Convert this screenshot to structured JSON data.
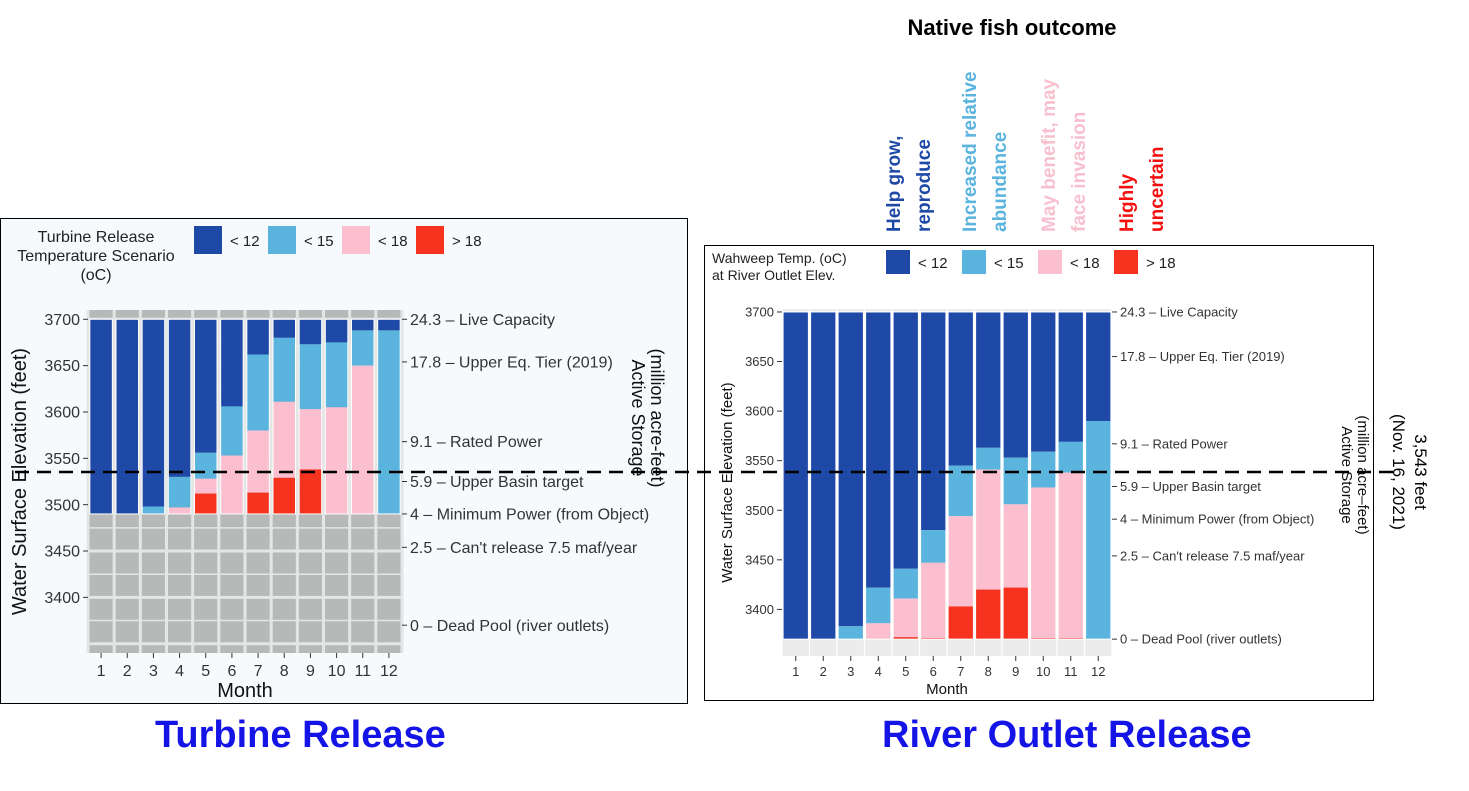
{
  "colors": {
    "lt12": "#1f49a7",
    "lt15": "#5ab4de",
    "lt18": "#fbbfd0",
    "gt18": "#f6331f",
    "outcome_title": "#000000",
    "outcome_pink": "#f8bfcf",
    "title_blue": "#1414e6",
    "grid": "#c9cbcb"
  },
  "outcome": {
    "title": "Native fish outcome",
    "labels": [
      {
        "lines": [
          "Help grow,",
          "reproduce"
        ],
        "color": "#1f49a7"
      },
      {
        "lines": [
          "Increased relative",
          "abundance"
        ],
        "color": "#5ab4de"
      },
      {
        "lines": [
          "May benefit, may",
          "face invasion"
        ],
        "color": "#f8bfcf"
      },
      {
        "lines": [
          "Highly",
          "uncertain"
        ],
        "color": "#f50f0f"
      }
    ]
  },
  "reference_line": {
    "label_lines": [
      "3,543 feet",
      "(Nov. 16, 2021)"
    ]
  },
  "titles": {
    "left": "Turbine Release",
    "right": "River Outlet Release"
  },
  "chart_data": [
    {
      "type": "bar",
      "stacked": true,
      "id": "turbine",
      "legend_title_lines": [
        "Turbine Release",
        "Temperature Scenario",
        "(oC)"
      ],
      "legend_entries": [
        "< 12",
        "< 15",
        "< 18",
        "> 18"
      ],
      "xlabel": "Month",
      "ylabel": "Water Surface Elevation (feet)",
      "y2label_lines": [
        "Active Storage",
        "(million acre-feet)"
      ],
      "categories": [
        "1",
        "2",
        "3",
        "4",
        "5",
        "6",
        "7",
        "8",
        "9",
        "10",
        "11",
        "12"
      ],
      "ylim": [
        3340,
        3710
      ],
      "yticks": [
        3400,
        3450,
        3500,
        3550,
        3600,
        3650,
        3700
      ],
      "base": 3490,
      "top": 3700,
      "boundaries": [
        [
          3490,
          3490,
          3490,
          3490,
          3490
        ],
        [
          3490,
          3490,
          3490,
          3490,
          3490
        ],
        [
          3498,
          3490,
          3490,
          3490,
          3490
        ],
        [
          3530,
          3497,
          3490,
          3490,
          3490
        ],
        [
          3556,
          3528,
          3512,
          3490,
          3490
        ],
        [
          3606,
          3553,
          3490,
          3490,
          3490
        ],
        [
          3662,
          3580,
          3513,
          3490,
          3490
        ],
        [
          3680,
          3611,
          3529,
          3490,
          3490
        ],
        [
          3673,
          3603,
          3538,
          3490,
          3490
        ],
        [
          3675,
          3605,
          3490,
          3490,
          3490
        ],
        [
          3688,
          3650,
          3490,
          3490,
          3490
        ],
        [
          3688,
          3490,
          3490,
          3490,
          3490
        ]
      ],
      "right_axis": [
        {
          "elev": 3700,
          "label": "24.3 – Live Capacity"
        },
        {
          "elev": 3654,
          "label": "17.8 – Upper Eq. Tier (2019)"
        },
        {
          "elev": 3568,
          "label": "9.1 – Rated Power"
        },
        {
          "elev": 3525,
          "label": "5.9 – Upper Basin target"
        },
        {
          "elev": 3490,
          "label": "4 – Minimum Power (from Object)"
        },
        {
          "elev": 3454,
          "label": "2.5 – Can't release 7.5 maf/year"
        },
        {
          "elev": 3370,
          "label": "0 – Dead Pool (river outlets)"
        }
      ]
    },
    {
      "type": "bar",
      "stacked": true,
      "id": "river-outlet",
      "legend_title_lines": [
        "Wahweep Temp. (oC)",
        "at River Outlet Elev."
      ],
      "legend_entries": [
        "< 12",
        "< 15",
        "< 18",
        "> 18"
      ],
      "xlabel": "Month",
      "ylabel": "Water Surface Elevation (feet)",
      "y2label_lines": [
        "Active Storage",
        "(million acre–feet)"
      ],
      "categories": [
        "1",
        "2",
        "3",
        "4",
        "5",
        "6",
        "7",
        "8",
        "9",
        "10",
        "11",
        "12"
      ],
      "ylim": [
        3353,
        3703
      ],
      "yticks": [
        3400,
        3450,
        3500,
        3550,
        3600,
        3650,
        3700
      ],
      "base": 3370,
      "top": 3700,
      "boundaries": [
        [
          3370,
          3370,
          3370,
          3370,
          3370
        ],
        [
          3370,
          3370,
          3370,
          3370,
          3370
        ],
        [
          3383,
          3370,
          3370,
          3370,
          3370
        ],
        [
          3422,
          3386,
          3370,
          3370,
          3370
        ],
        [
          3441,
          3411,
          3372,
          3370,
          3370
        ],
        [
          3480,
          3447,
          3371,
          3370,
          3370
        ],
        [
          3545,
          3494,
          3403,
          3370,
          3370
        ],
        [
          3563,
          3541,
          3420,
          3370,
          3370
        ],
        [
          3553,
          3506,
          3422,
          3370,
          3370
        ],
        [
          3559,
          3523,
          3371,
          3370,
          3370
        ],
        [
          3569,
          3538,
          3371,
          3370,
          3370
        ],
        [
          3590,
          3370,
          3370,
          3370,
          3370
        ]
      ],
      "right_axis": [
        {
          "elev": 3700,
          "label": "24.3 – Live Capacity"
        },
        {
          "elev": 3655,
          "label": "17.8 – Upper Eq. Tier (2019)"
        },
        {
          "elev": 3567,
          "label": "9.1 – Rated Power"
        },
        {
          "elev": 3524,
          "label": "5.9 – Upper Basin target"
        },
        {
          "elev": 3491,
          "label": "4 – Minimum Power (from Object)"
        },
        {
          "elev": 3454,
          "label": "2.5 – Can't release 7.5 maf/year"
        },
        {
          "elev": 3370,
          "label": "0 – Dead Pool (river outlets)"
        }
      ]
    }
  ]
}
